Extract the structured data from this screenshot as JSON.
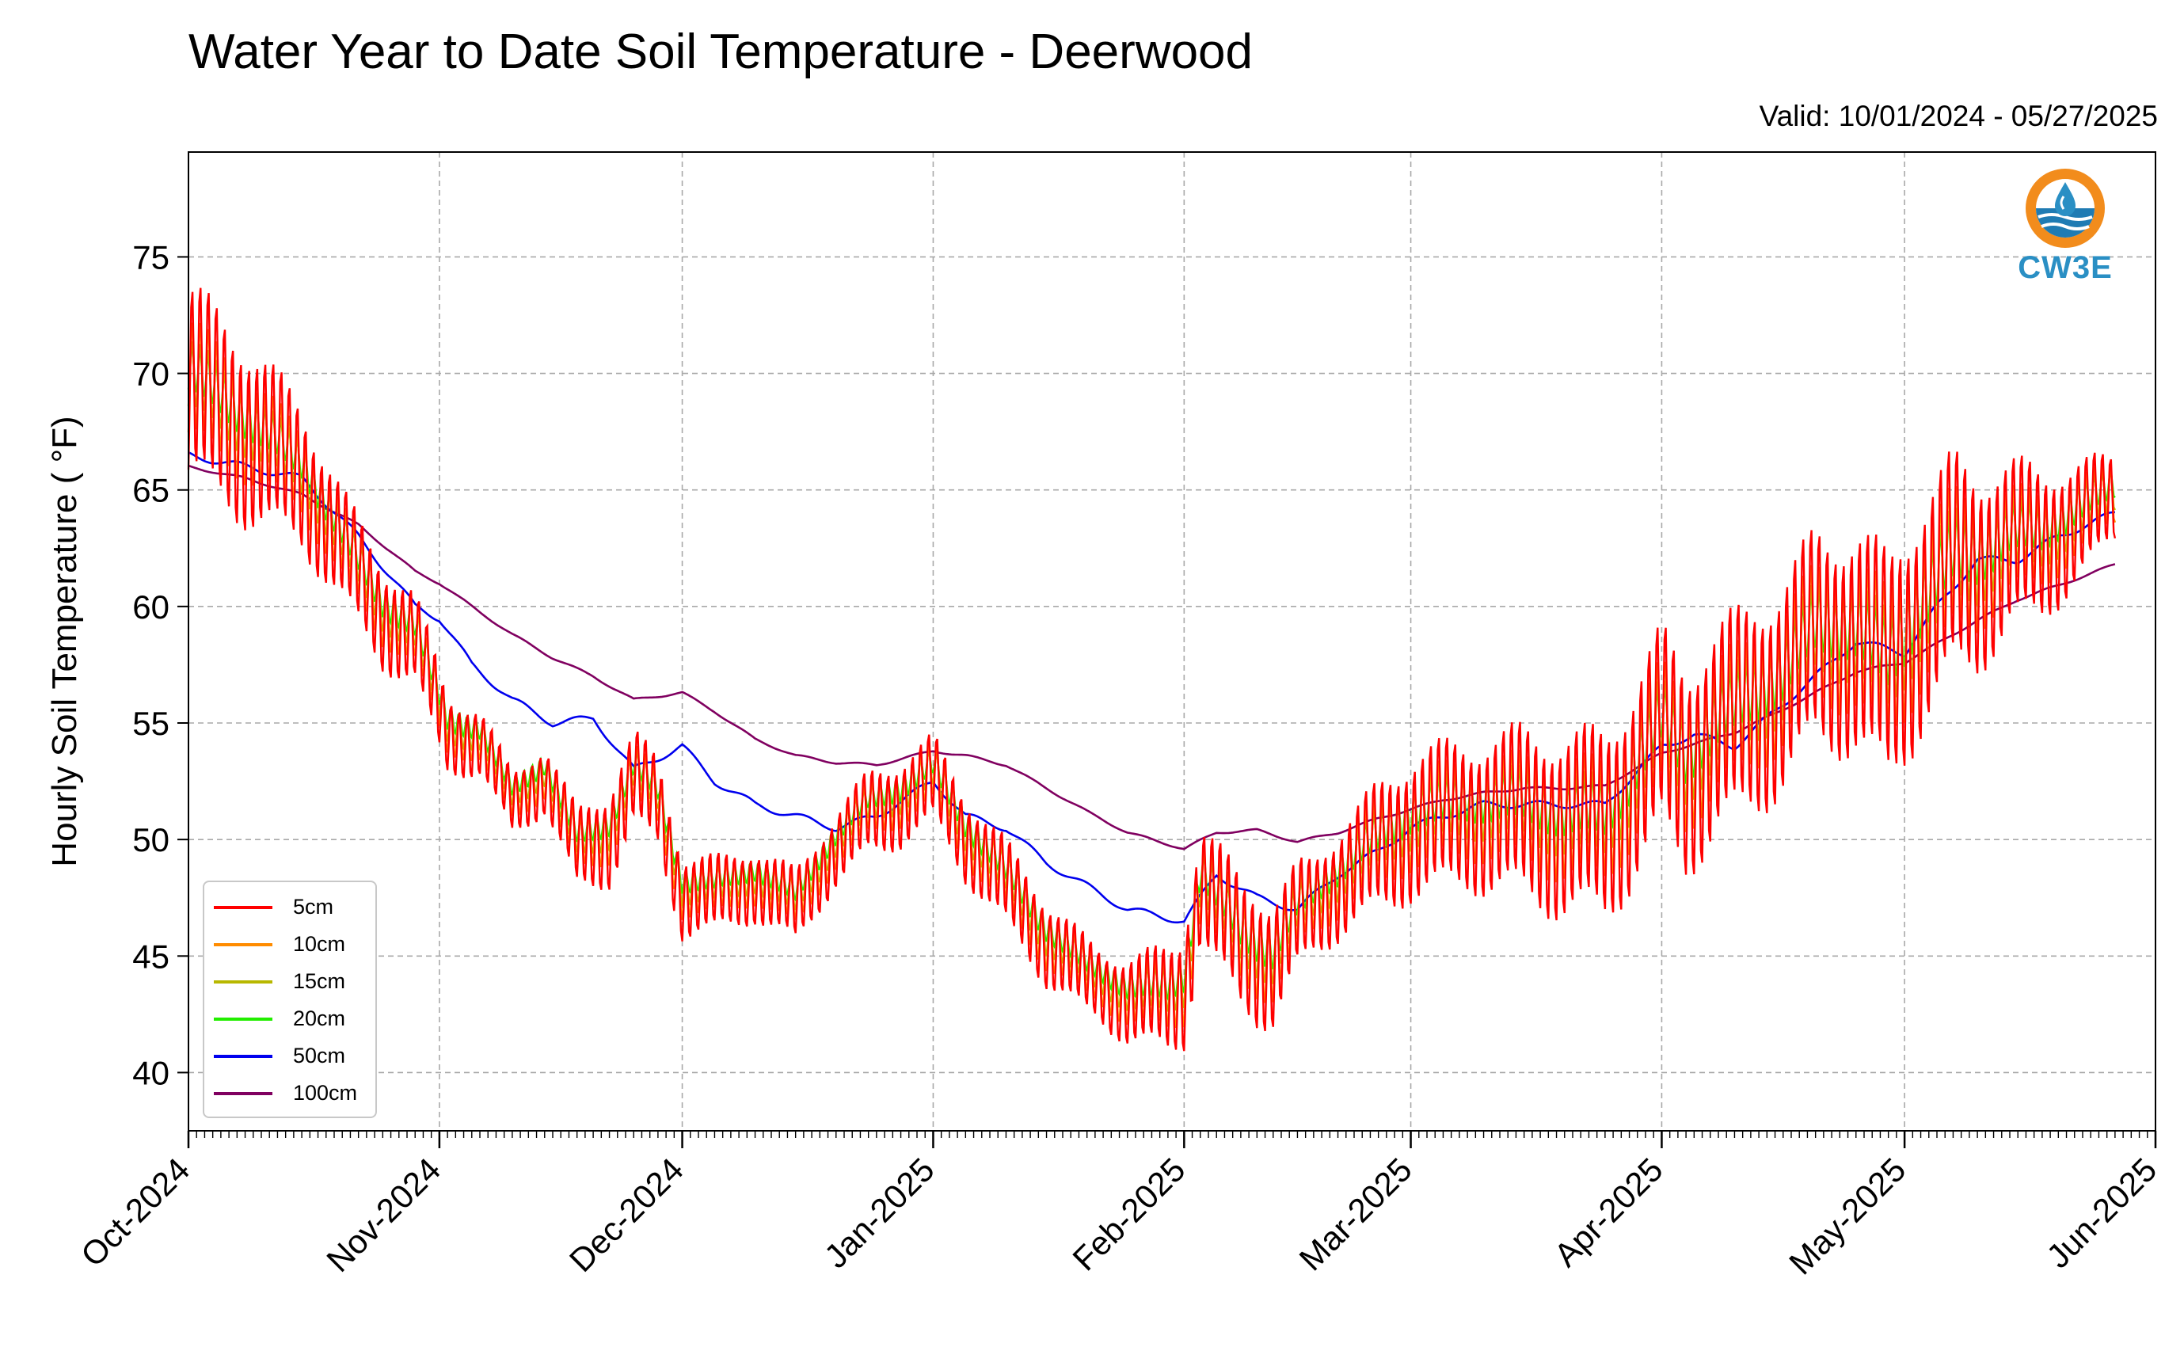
{
  "title": "Water Year to Date Soil Temperature - Deerwood",
  "valid_label": "Valid: 10/01/2024 - 05/27/2025",
  "logo": {
    "text": "CW3E",
    "icon": "cw3e-water-drop-logo"
  },
  "chart_data": {
    "type": "line",
    "title": "Water Year to Date Soil Temperature - Deerwood",
    "xlabel": "",
    "ylabel": "Hourly Soil Temperature ( °F)",
    "ylim": [
      37.5,
      79.5
    ],
    "xlim": [
      "2024-10-01",
      "2025-06-01"
    ],
    "x_ticks": [
      "2024-10-01",
      "2024-11-01",
      "2024-12-01",
      "2025-01-01",
      "2025-02-01",
      "2025-03-01",
      "2025-04-01",
      "2025-05-01",
      "2025-06-01"
    ],
    "x_tick_labels": [
      "Oct-2024",
      "Nov-2024",
      "Dec-2024",
      "Jan-2025",
      "Feb-2025",
      "Mar-2025",
      "Apr-2025",
      "May-2025",
      "Jun-2025"
    ],
    "y_ticks": [
      40,
      45,
      50,
      55,
      60,
      65,
      70,
      75
    ],
    "y_tick_labels": [
      "40",
      "45",
      "50",
      "55",
      "60",
      "65",
      "70",
      "75"
    ],
    "grid": true,
    "legend_position": "lower-left",
    "series": [
      {
        "name": "5cm",
        "color": "#ff0000",
        "diurnal_amp": [
          8,
          7.5,
          6,
          4.5,
          4,
          3,
          2.5,
          3,
          4,
          3.5,
          3,
          3,
          3,
          3.5,
          3.5,
          3.5,
          3.5,
          3,
          4,
          5,
          5.5,
          4,
          5,
          6,
          6,
          7,
          7.5,
          8,
          8.5,
          8.5,
          8.5,
          9,
          9.5,
          9,
          7,
          5.5,
          3.5
        ]
      },
      {
        "name": "10cm",
        "color": "#ff8c00",
        "diurnal_amp": [
          5,
          4.5,
          3.5,
          3,
          2.5,
          2,
          1.8,
          2,
          2.5,
          2.2,
          2,
          2,
          2,
          2.2,
          2.5,
          2.5,
          2.5,
          2,
          2.7,
          3.5,
          3.7,
          2.7,
          3.5,
          4,
          4,
          4.5,
          5,
          5.2,
          5.5,
          5.5,
          5.5,
          6,
          6.5,
          6,
          4.5,
          3.5,
          2.5
        ]
      },
      {
        "name": "15cm",
        "color": "#b8b800",
        "diurnal_amp": [
          3,
          2.8,
          2.2,
          2,
          1.8,
          1.5,
          1.2,
          1.4,
          1.7,
          1.5,
          1.4,
          1.4,
          1.4,
          1.5,
          1.7,
          1.7,
          1.7,
          1.4,
          1.8,
          2.3,
          2.5,
          1.8,
          2.3,
          2.7,
          2.7,
          3,
          3.3,
          3.5,
          3.7,
          3.7,
          3.7,
          4,
          4.3,
          4,
          3,
          2.5,
          1.8
        ]
      },
      {
        "name": "20cm",
        "color": "#22ee00",
        "diurnal_amp": [
          2,
          1.8,
          1.5,
          1.3,
          1.2,
          1,
          0.8,
          0.9,
          1.1,
          1,
          0.9,
          0.9,
          0.9,
          1,
          1.1,
          1.1,
          1.1,
          0.9,
          1.2,
          1.5,
          1.7,
          1.2,
          1.5,
          1.8,
          1.8,
          2,
          2.2,
          2.3,
          2.5,
          2.5,
          2.5,
          2.7,
          2.9,
          2.7,
          2,
          1.6,
          1.2
        ]
      },
      {
        "name": "50cm",
        "color": "#0000ee",
        "diurnal_amp": []
      },
      {
        "name": "100cm",
        "color": "#800060",
        "diurnal_amp": []
      }
    ],
    "shallow_mean": {
      "x": [
        "2024-10-01",
        "2024-10-08",
        "2024-10-15",
        "2024-10-20",
        "2024-10-25",
        "2024-10-29",
        "2024-11-02",
        "2024-11-06",
        "2024-11-10",
        "2024-11-14",
        "2024-11-18",
        "2024-11-22",
        "2024-11-25",
        "2024-11-28",
        "2024-12-01",
        "2024-12-05",
        "2024-12-10",
        "2024-12-15",
        "2024-12-20",
        "2024-12-24",
        "2024-12-28",
        "2025-01-01",
        "2025-01-05",
        "2025-01-10",
        "2025-01-15",
        "2025-01-20",
        "2025-01-25",
        "2025-01-30",
        "2025-02-01",
        "2025-02-03",
        "2025-02-05",
        "2025-02-08",
        "2025-02-12",
        "2025-02-15",
        "2025-02-20",
        "2025-02-25",
        "2025-03-01",
        "2025-03-08",
        "2025-03-15",
        "2025-03-20",
        "2025-03-25",
        "2025-03-28",
        "2025-04-01",
        "2025-04-04",
        "2025-04-08",
        "2025-04-12",
        "2025-04-16",
        "2025-04-20",
        "2025-04-25",
        "2025-04-29",
        "2025-05-03",
        "2025-05-07",
        "2025-05-10",
        "2025-05-14",
        "2025-05-18",
        "2025-05-22",
        "2025-05-27"
      ],
      "y": [
        70,
        68,
        66,
        63,
        60,
        59,
        55,
        54.5,
        52,
        53,
        50,
        50.5,
        53,
        52,
        48,
        48,
        48.5,
        47.5,
        50,
        51.5,
        52,
        53,
        50.5,
        48.5,
        46,
        44.5,
        43.5,
        43.5,
        44,
        48.5,
        47.5,
        46,
        45,
        47,
        48.5,
        50,
        51,
        51.5,
        51.5,
        51,
        51,
        52.5,
        55,
        53.5,
        55,
        56,
        57,
        59,
        59,
        57.5,
        60,
        62,
        62,
        63,
        63,
        64,
        65
      ]
    },
    "series_50cm": {
      "x": [
        "2024-10-01",
        "2024-10-08",
        "2024-10-15",
        "2024-10-22",
        "2024-10-29",
        "2024-11-01",
        "2024-11-05",
        "2024-11-10",
        "2024-11-15",
        "2024-11-20",
        "2024-11-25",
        "2024-12-01",
        "2024-12-05",
        "2024-12-10",
        "2024-12-15",
        "2024-12-20",
        "2024-12-25",
        "2025-01-01",
        "2025-01-05",
        "2025-01-10",
        "2025-01-15",
        "2025-01-20",
        "2025-01-25",
        "2025-02-01",
        "2025-02-05",
        "2025-02-10",
        "2025-02-15",
        "2025-02-20",
        "2025-02-25",
        "2025-03-01",
        "2025-03-05",
        "2025-03-10",
        "2025-03-15",
        "2025-03-20",
        "2025-03-25",
        "2025-04-01",
        "2025-04-05",
        "2025-04-10",
        "2025-04-15",
        "2025-04-20",
        "2025-04-25",
        "2025-05-01",
        "2025-05-05",
        "2025-05-10",
        "2025-05-15",
        "2025-05-20",
        "2025-05-27"
      ],
      "y": [
        66.5,
        66,
        65.5,
        63,
        60,
        59.5,
        57.5,
        56,
        55,
        55.2,
        53,
        54,
        52.5,
        51.5,
        51,
        50.5,
        51,
        52.5,
        51,
        50.5,
        49,
        48,
        47,
        46.5,
        48.5,
        47.5,
        47,
        48.5,
        49.5,
        50.5,
        51,
        51.5,
        51.5,
        51.5,
        51.5,
        54,
        54.5,
        54,
        55.5,
        57,
        58.5,
        58,
        60,
        62,
        62,
        63,
        64
      ]
    },
    "series_100cm": {
      "x": [
        "2024-10-01",
        "2024-10-08",
        "2024-10-15",
        "2024-10-22",
        "2024-10-29",
        "2024-11-01",
        "2024-11-05",
        "2024-11-10",
        "2024-11-15",
        "2024-11-20",
        "2024-11-25",
        "2024-12-01",
        "2024-12-05",
        "2024-12-10",
        "2024-12-15",
        "2024-12-20",
        "2024-12-25",
        "2025-01-01",
        "2025-01-05",
        "2025-01-10",
        "2025-01-15",
        "2025-01-20",
        "2025-01-25",
        "2025-02-01",
        "2025-02-05",
        "2025-02-10",
        "2025-02-15",
        "2025-02-20",
        "2025-02-25",
        "2025-03-01",
        "2025-03-05",
        "2025-03-10",
        "2025-03-15",
        "2025-03-20",
        "2025-03-25",
        "2025-04-01",
        "2025-04-05",
        "2025-04-10",
        "2025-04-15",
        "2025-04-20",
        "2025-04-25",
        "2025-05-01",
        "2025-05-05",
        "2025-05-10",
        "2025-05-15",
        "2025-05-20",
        "2025-05-27"
      ],
      "y": [
        66,
        65.5,
        64.8,
        63.5,
        61.5,
        61,
        60,
        58.8,
        57.8,
        57,
        56,
        56.3,
        55.5,
        54.3,
        53.6,
        53.3,
        53.2,
        53.8,
        53.6,
        53.2,
        52.2,
        51.2,
        50.3,
        49.6,
        50.3,
        50.4,
        49.9,
        50.3,
        50.9,
        51.3,
        51.7,
        52,
        52.2,
        52.2,
        52.3,
        53.7,
        54.1,
        54.6,
        55.4,
        56.3,
        57.2,
        57.6,
        58.4,
        59.4,
        60.3,
        60.9,
        61.8
      ]
    }
  }
}
